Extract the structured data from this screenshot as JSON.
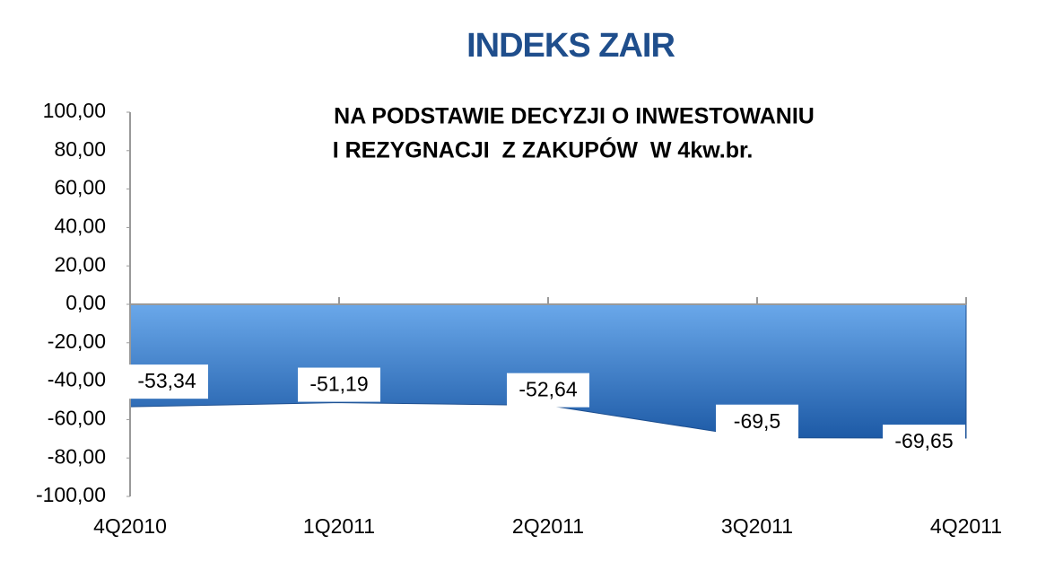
{
  "chart_data": {
    "type": "area",
    "title": "INDEKS ZAIR",
    "subtitle": [
      "NA PODSTAWIE DECYZJI O INWESTOWANIU",
      "I REZYGNACJI  Z ZAKUPÓW  W 4kw.br."
    ],
    "categories": [
      "4Q2010",
      "1Q2011",
      "2Q2011",
      "3Q2011",
      "4Q2011"
    ],
    "values": [
      -53.34,
      -51.19,
      -52.64,
      -69.5,
      -69.65
    ],
    "value_labels": [
      "-53,34",
      "-51,19",
      "-52,64",
      "-69,5",
      "-69,65"
    ],
    "color": "#3a7fd0",
    "ylim": [
      -100,
      100
    ],
    "yticks": [
      {
        "value": -100,
        "label": "-100,00"
      },
      {
        "value": -80,
        "label": "-80,00"
      },
      {
        "value": -60,
        "label": "-60,00"
      },
      {
        "value": -40,
        "label": "-40,00"
      },
      {
        "value": -20,
        "label": "-20,00"
      },
      {
        "value": 0,
        "label": "0,00"
      },
      {
        "value": 20,
        "label": "20,00"
      },
      {
        "value": 40,
        "label": "40,00"
      },
      {
        "value": 60,
        "label": "60,00"
      },
      {
        "value": 80,
        "label": "80,00"
      },
      {
        "value": 100,
        "label": "100,00"
      }
    ]
  }
}
